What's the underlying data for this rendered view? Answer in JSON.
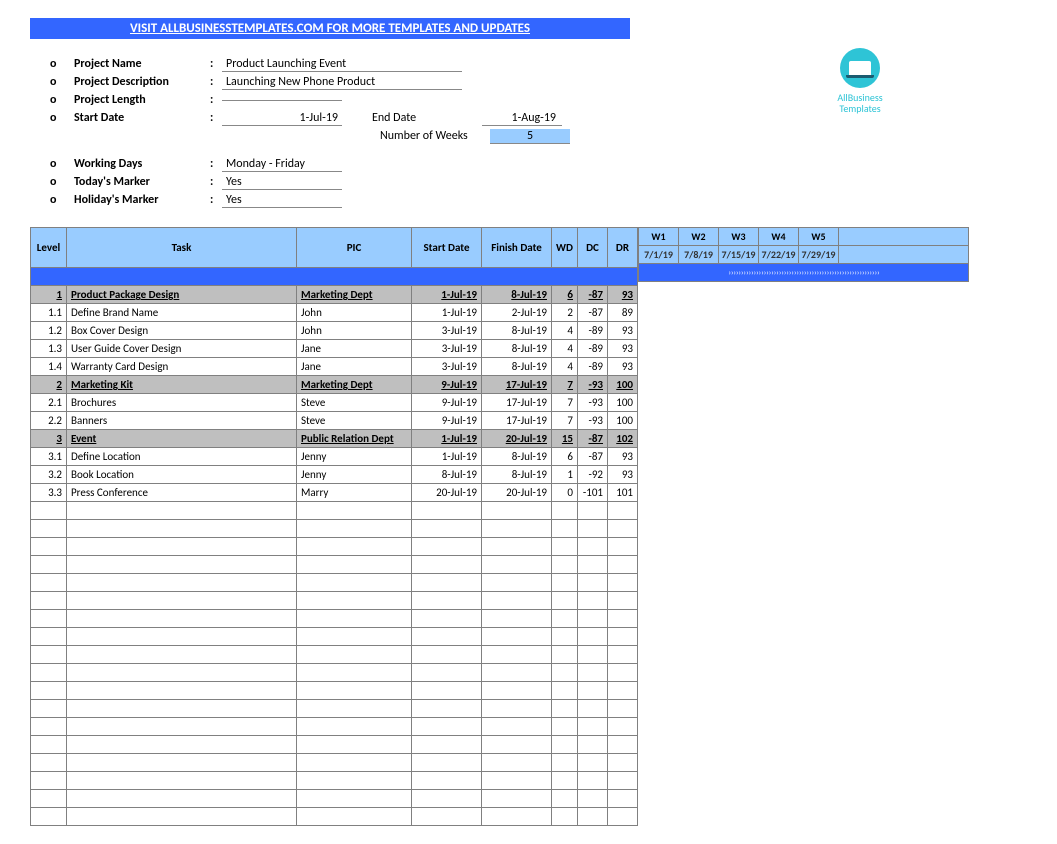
{
  "banner": {
    "text": "VISIT ALLBUSINESSTEMPLATES.COM FOR MORE TEMPLATES AND UPDATES"
  },
  "logo": {
    "line1": "AllBusiness",
    "line2": "Templates"
  },
  "meta": {
    "project_name_label": "Project Name",
    "project_name": "Product Launching Event",
    "project_desc_label": "Project Description",
    "project_desc": "Launching New Phone Product",
    "project_length_label": "Project Length",
    "project_length": "",
    "start_date_label": "Start Date",
    "start_date": "1-Jul-19",
    "end_date_label": "End Date",
    "end_date": "1-Aug-19",
    "num_weeks_label": "Number of Weeks",
    "num_weeks": "5",
    "working_days_label": "Working Days",
    "working_days": "Monday - Friday",
    "todays_marker_label": "Today's Marker",
    "todays_marker": "Yes",
    "holidays_marker_label": "Holiday's Marker",
    "holidays_marker": "Yes"
  },
  "columns": {
    "level": "Level",
    "task": "Task",
    "pic": "PIC",
    "start": "Start Date",
    "finish": "Finish Date",
    "wd": "WD",
    "dc": "DC",
    "dr": "DR"
  },
  "weeks": [
    {
      "label": "W1",
      "date": "7/1/19"
    },
    {
      "label": "W2",
      "date": "7/8/19"
    },
    {
      "label": "W3",
      "date": "7/15/19"
    },
    {
      "label": "W4",
      "date": "7/22/19"
    },
    {
      "label": "W5",
      "date": "7/29/19"
    }
  ],
  "rows": [
    {
      "type": "group",
      "level": "1",
      "task": "Product Package Design",
      "pic": "Marketing Dept",
      "sd": "1-Jul-19",
      "fd": "8-Jul-19",
      "wd": "6",
      "dc": "-87",
      "dr": "93"
    },
    {
      "type": "task",
      "level": "1.1",
      "task": "Define Brand Name",
      "pic": "John",
      "sd": "1-Jul-19",
      "fd": "2-Jul-19",
      "wd": "2",
      "dc": "-87",
      "dr": "89"
    },
    {
      "type": "task",
      "level": "1.2",
      "task": "Box Cover Design",
      "pic": "John",
      "sd": "3-Jul-19",
      "fd": "8-Jul-19",
      "wd": "4",
      "dc": "-89",
      "dr": "93"
    },
    {
      "type": "task",
      "level": "1.3",
      "task": "User Guide Cover Design",
      "pic": "Jane",
      "sd": "3-Jul-19",
      "fd": "8-Jul-19",
      "wd": "4",
      "dc": "-89",
      "dr": "93"
    },
    {
      "type": "task",
      "level": "1.4",
      "task": "Warranty Card Design",
      "pic": "Jane",
      "sd": "3-Jul-19",
      "fd": "8-Jul-19",
      "wd": "4",
      "dc": "-89",
      "dr": "93"
    },
    {
      "type": "group",
      "level": "2",
      "task": "Marketing Kit",
      "pic": "Marketing Dept",
      "sd": "9-Jul-19",
      "fd": "17-Jul-19",
      "wd": "7",
      "dc": "-93",
      "dr": "100"
    },
    {
      "type": "task",
      "level": "2.1",
      "task": "Brochures",
      "pic": "Steve",
      "sd": "9-Jul-19",
      "fd": "17-Jul-19",
      "wd": "7",
      "dc": "-93",
      "dr": "100"
    },
    {
      "type": "task",
      "level": "2.2",
      "task": "Banners",
      "pic": "Steve",
      "sd": "9-Jul-19",
      "fd": "17-Jul-19",
      "wd": "7",
      "dc": "-93",
      "dr": "100"
    },
    {
      "type": "group",
      "level": "3",
      "task": "Event",
      "pic": "Public Relation Dept",
      "sd": "1-Jul-19",
      "fd": "20-Jul-19",
      "wd": "15",
      "dc": "-87",
      "dr": "102"
    },
    {
      "type": "task",
      "level": "3.1",
      "task": "Define Location",
      "pic": "Jenny",
      "sd": "1-Jul-19",
      "fd": "8-Jul-19",
      "wd": "6",
      "dc": "-87",
      "dr": "93"
    },
    {
      "type": "task",
      "level": "3.2",
      "task": "Book Location",
      "pic": "Jenny",
      "sd": "8-Jul-19",
      "fd": "8-Jul-19",
      "wd": "1",
      "dc": "-92",
      "dr": "93"
    },
    {
      "type": "task",
      "level": "3.3",
      "task": "Press Conference",
      "pic": "Marry",
      "sd": "20-Jul-19",
      "fd": "20-Jul-19",
      "wd": "0",
      "dc": "-101",
      "dr": "101"
    }
  ],
  "empty_rows": 18,
  "colors": {
    "banner_bg": "#3366ff",
    "header_bg": "#99ccff",
    "group_bg": "#bfbfbf",
    "sep_bg": "#3366ff",
    "border": "#808080",
    "logo": "#2ec4d6"
  }
}
